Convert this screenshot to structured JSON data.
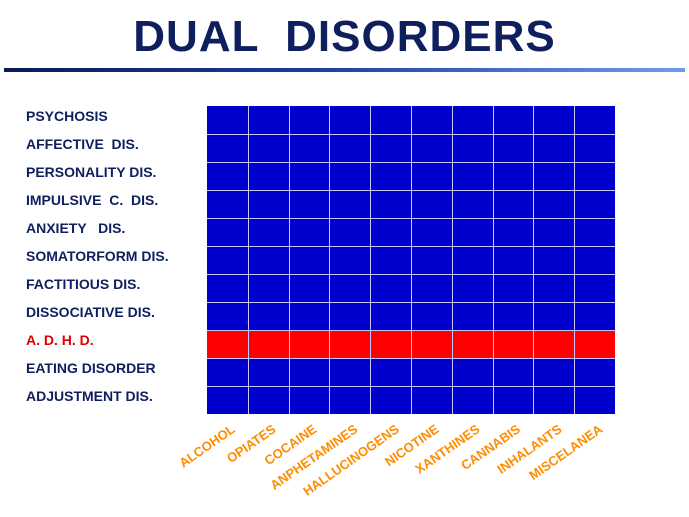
{
  "title": "DUAL  DISORDERS",
  "rows": [
    {
      "label": "PSYCHOSIS",
      "highlighted": false
    },
    {
      "label": "AFFECTIVE  DIS.",
      "highlighted": false
    },
    {
      "label": "PERSONALITY DIS.",
      "highlighted": false
    },
    {
      "label": "IMPULSIVE  C.  DIS.",
      "highlighted": false
    },
    {
      "label": "ANXIETY   DIS.",
      "highlighted": false
    },
    {
      "label": "SOMATORFORM DIS.",
      "highlighted": false
    },
    {
      "label": "FACTITIOUS DIS.",
      "highlighted": false
    },
    {
      "label": "DISSOCIATIVE DIS.",
      "highlighted": false
    },
    {
      "label": "A. D. H. D.",
      "highlighted": true
    },
    {
      "label": "EATING DISORDER",
      "highlighted": false
    },
    {
      "label": "ADJUSTMENT DIS.",
      "highlighted": false
    }
  ],
  "columns": [
    "ALCOHOL",
    "OPIATES",
    "COCAINE",
    "ANPHETAMINES",
    "HALLUCINOGENS",
    "NICOTINE",
    "XANTHINES",
    "CANNABIS",
    "INHALANTS",
    "MISCELANEA"
  ],
  "colors": {
    "title": "#0f1f5e",
    "row_label": "#0f1f5e",
    "row_label_highlight": "#e00000",
    "cell": "#0000cc",
    "cell_highlight": "#ff0000",
    "column_label": "#ff8c00"
  }
}
